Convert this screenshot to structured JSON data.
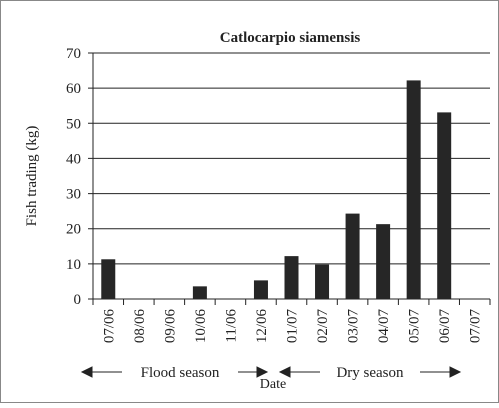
{
  "chart_data": {
    "type": "bar",
    "title": "Catlocarpio siamensis",
    "categories": [
      "07/06",
      "08/06",
      "09/06",
      "10/06",
      "11/06",
      "12/06",
      "01/07",
      "02/07",
      "03/07",
      "04/07",
      "05/07",
      "06/07",
      "07/07"
    ],
    "values": [
      11.3,
      0,
      0,
      3.6,
      0,
      5.3,
      12.2,
      9.8,
      24.3,
      21.3,
      62.2,
      53.1,
      0
    ],
    "color": "#262626",
    "ylim": [
      0,
      70
    ],
    "yticks": [
      0,
      10,
      20,
      30,
      40,
      50,
      60,
      70
    ],
    "grid": true,
    "x_label": "Date",
    "y_label": "Fish trading (kg)",
    "annotations": [
      "Flood season",
      "Dry season"
    ]
  }
}
